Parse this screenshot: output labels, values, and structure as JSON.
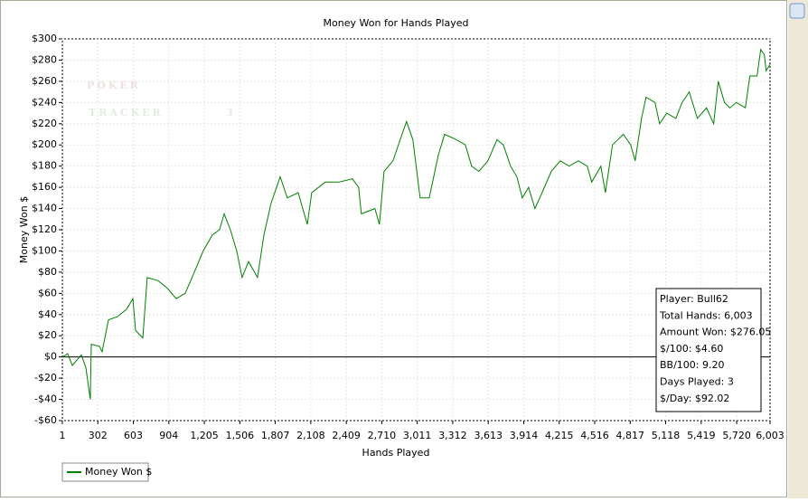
{
  "chart_data": {
    "type": "line",
    "title": "Money Won for Hands Played",
    "x_label": "Hands Played",
    "y_label": "Money Won $",
    "watermark": [
      "POKER",
      "TRACKER",
      "3"
    ],
    "x": [
      1,
      47,
      85,
      162,
      200,
      238,
      246,
      315,
      338,
      392,
      468,
      545,
      599,
      622,
      683,
      721,
      813,
      890,
      967,
      1043,
      1120,
      1196,
      1273,
      1334,
      1373,
      1426,
      1480,
      1526,
      1580,
      1656,
      1710,
      1771,
      1848,
      1909,
      2001,
      2078,
      2116,
      2231,
      2346,
      2461,
      2514,
      2537,
      2652,
      2690,
      2729,
      2805,
      2882,
      2920,
      2974,
      3035,
      3112,
      3189,
      3243,
      3342,
      3419,
      3472,
      3534,
      3610,
      3687,
      3741,
      3802,
      3856,
      3902,
      3955,
      4009,
      4070,
      4147,
      4224,
      4300,
      4377,
      4453,
      4491,
      4568,
      4606,
      4667,
      4759,
      4821,
      4859,
      4913,
      4951,
      5027,
      5066,
      5127,
      5204,
      5257,
      5318,
      5387,
      5464,
      5525,
      5564,
      5617,
      5663,
      5717,
      5794,
      5832,
      5893,
      5924,
      5955,
      5970,
      6003
    ],
    "series": [
      {
        "name": "Money Won $",
        "color": "#008000",
        "values": [
          0,
          3,
          -8,
          2,
          -10,
          -40,
          12,
          10,
          5,
          35,
          38,
          45,
          55,
          25,
          18,
          75,
          72,
          65,
          55,
          60,
          80,
          100,
          115,
          120,
          135,
          120,
          100,
          75,
          90,
          75,
          115,
          145,
          170,
          150,
          155,
          125,
          155,
          165,
          165,
          168,
          160,
          135,
          140,
          125,
          175,
          185,
          210,
          222,
          205,
          150,
          150,
          190,
          210,
          205,
          200,
          180,
          175,
          185,
          205,
          200,
          180,
          170,
          150,
          160,
          140,
          155,
          175,
          185,
          180,
          185,
          180,
          165,
          180,
          155,
          200,
          210,
          200,
          185,
          225,
          245,
          240,
          220,
          230,
          225,
          240,
          250,
          225,
          235,
          220,
          260,
          240,
          235,
          240,
          235,
          265,
          265,
          290,
          285,
          270,
          276
        ]
      }
    ],
    "xlim": [
      1,
      6003
    ],
    "xticks": [
      1,
      302,
      603,
      904,
      {
        "value": 1205,
        "label": "1,205"
      },
      {
        "value": 1506,
        "label": "1,506"
      },
      {
        "value": 1807,
        "label": "1,807"
      },
      {
        "value": 2108,
        "label": "2,108"
      },
      {
        "value": 2409,
        "label": "2,409"
      },
      {
        "value": 2710,
        "label": "2,710"
      },
      {
        "value": 3011,
        "label": "3,011"
      },
      {
        "value": 3312,
        "label": "3,312"
      },
      {
        "value": 3613,
        "label": "3,613"
      },
      {
        "value": 3914,
        "label": "3,914"
      },
      {
        "value": 4215,
        "label": "4,215"
      },
      {
        "value": 4516,
        "label": "4,516"
      },
      {
        "value": 4817,
        "label": "4,817"
      },
      {
        "value": 5118,
        "label": "5,118"
      },
      {
        "value": 5419,
        "label": "5,419"
      },
      {
        "value": 5720,
        "label": "5,720"
      },
      {
        "value": 6003,
        "label": "6,003"
      }
    ],
    "ylim": [
      -60,
      300
    ],
    "yticks": [
      {
        "value": -60,
        "label": "-$60"
      },
      {
        "value": -40,
        "label": "-$40"
      },
      {
        "value": -20,
        "label": "-$20"
      },
      {
        "value": 0,
        "label": "$0"
      },
      {
        "value": 20,
        "label": "$20"
      },
      {
        "value": 40,
        "label": "$40"
      },
      {
        "value": 60,
        "label": "$60"
      },
      {
        "value": 80,
        "label": "$80"
      },
      {
        "value": 100,
        "label": "$100"
      },
      {
        "value": 120,
        "label": "$120"
      },
      {
        "value": 140,
        "label": "$140"
      },
      {
        "value": 160,
        "label": "$160"
      },
      {
        "value": 180,
        "label": "$180"
      },
      {
        "value": 200,
        "label": "$200"
      },
      {
        "value": 220,
        "label": "$220"
      },
      {
        "value": 240,
        "label": "$240"
      },
      {
        "value": 260,
        "label": "$260"
      },
      {
        "value": 280,
        "label": "$280"
      },
      {
        "value": 300,
        "label": "$300"
      }
    ],
    "grid": true,
    "info_box": [
      "Player: Bull62",
      "Total Hands: 6,003",
      "Amount Won: $276.05",
      "$/100: $4.60",
      "BB/100: 9.20",
      "Days Played: 3",
      "$/Day: $92.02"
    ]
  }
}
